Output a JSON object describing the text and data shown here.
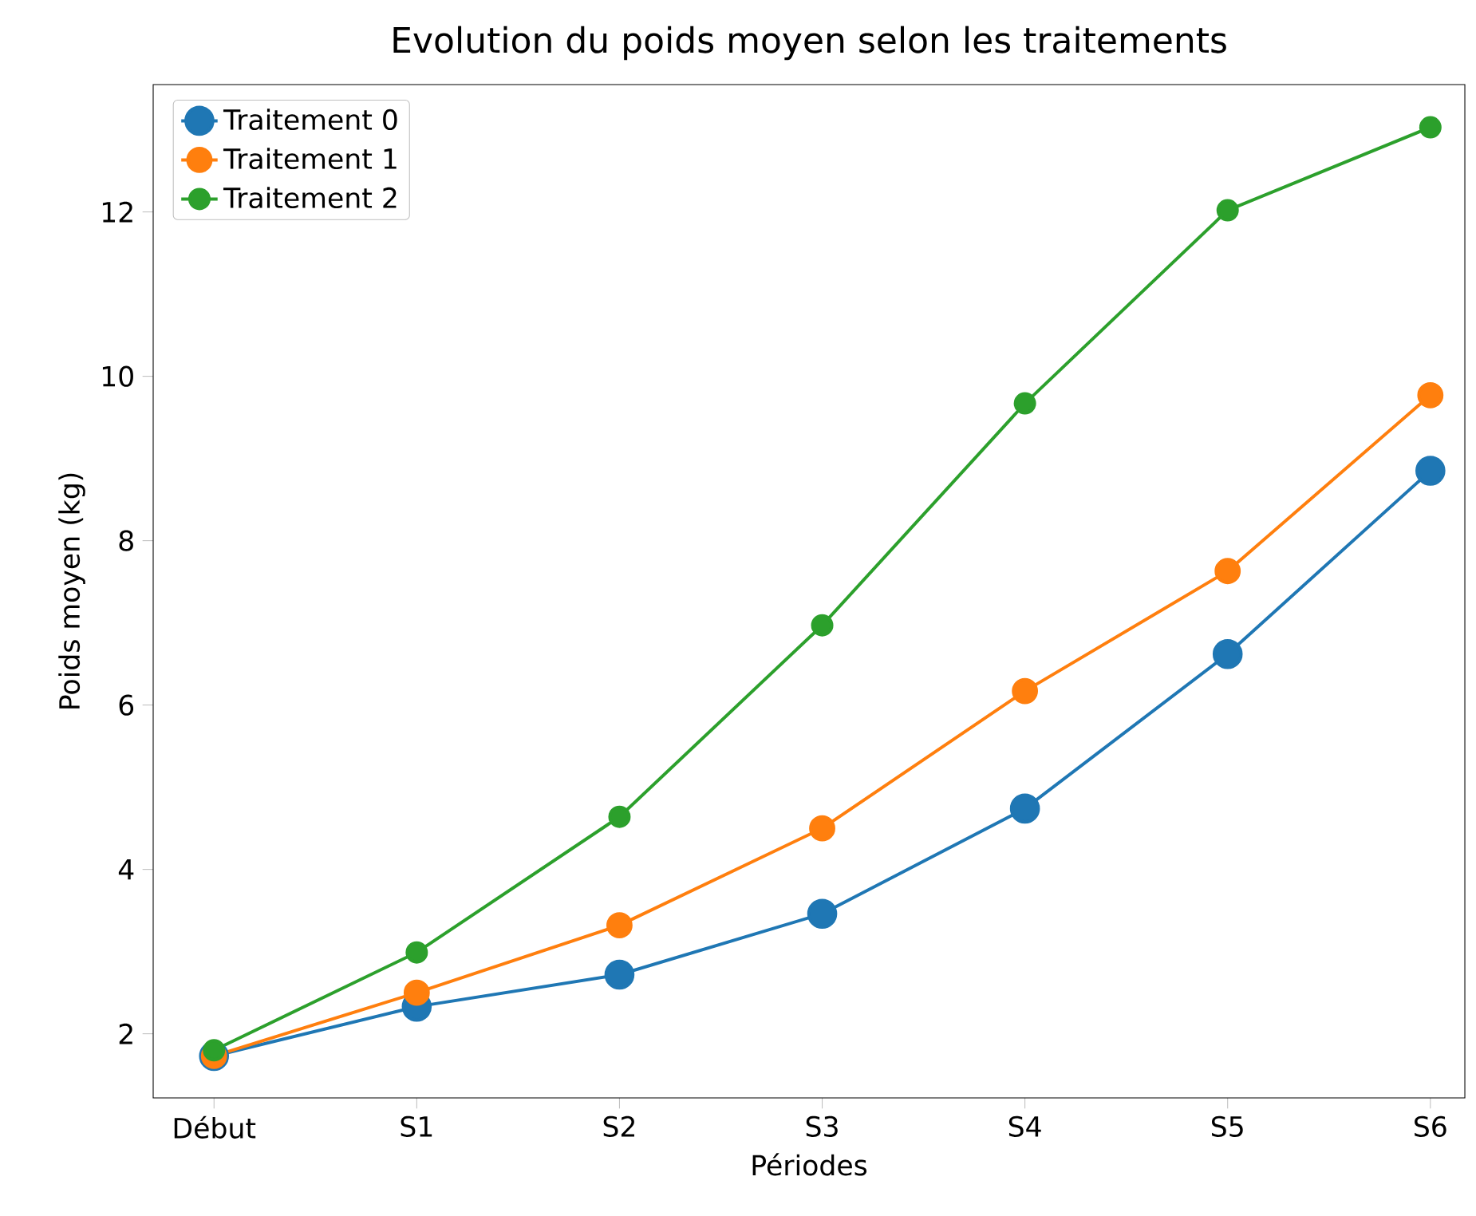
{
  "chart_data": {
    "type": "line",
    "title": "Evolution du poids moyen selon les traitements",
    "xlabel": "Périodes",
    "ylabel": "Poids moyen (kg)",
    "categories": [
      "Début",
      "S1",
      "S2",
      "S3",
      "S4",
      "S5",
      "S6"
    ],
    "series": [
      {
        "name": "Traitement 0",
        "color": "#1f77b4",
        "values": [
          1.73,
          2.33,
          2.72,
          3.46,
          4.74,
          6.62,
          8.85
        ]
      },
      {
        "name": "Traitement 1",
        "color": "#ff7f0e",
        "values": [
          1.73,
          2.5,
          3.32,
          4.5,
          6.17,
          7.63,
          9.77
        ]
      },
      {
        "name": "Traitement 2",
        "color": "#2ca02c",
        "values": [
          1.8,
          2.99,
          4.64,
          6.97,
          9.67,
          12.02,
          13.03
        ]
      }
    ],
    "ylim": [
      1.22,
      13.55
    ],
    "yticks": [
      2,
      4,
      6,
      8,
      10,
      12
    ],
    "legend": "top left",
    "marker": "circle",
    "line_style": "solid",
    "grid": false
  }
}
